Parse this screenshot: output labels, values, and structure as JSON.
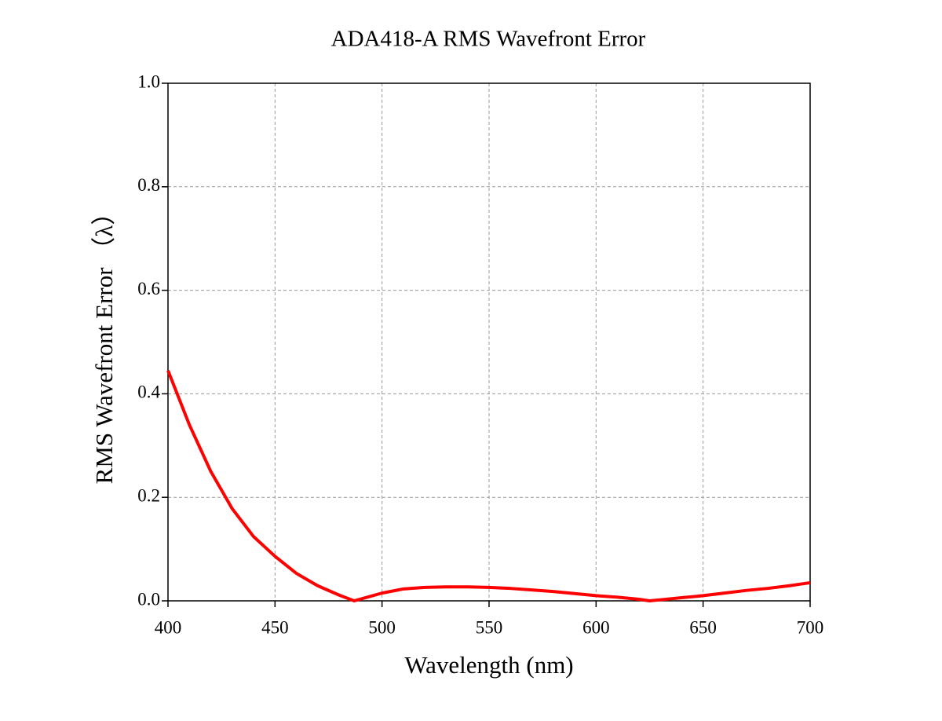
{
  "chart_data": {
    "type": "line",
    "title": "ADA418-A RMS Wavefront Error",
    "x_label": "Wavelength (nm)",
    "y_label": "RMS Wavefront Error （λ）",
    "x": [
      400,
      410,
      420,
      430,
      440,
      450,
      460,
      470,
      480,
      487,
      500,
      510,
      520,
      530,
      540,
      550,
      560,
      570,
      580,
      590,
      600,
      610,
      620,
      625,
      630,
      640,
      650,
      660,
      670,
      680,
      690,
      700
    ],
    "series": [
      {
        "name": "RMS Wavefront Error",
        "color": "#ff0000",
        "values": [
          0.445,
          0.34,
          0.25,
          0.178,
          0.124,
          0.086,
          0.053,
          0.029,
          0.011,
          0.0,
          0.015,
          0.023,
          0.026,
          0.027,
          0.027,
          0.026,
          0.024,
          0.021,
          0.018,
          0.014,
          0.01,
          0.007,
          0.003,
          0.0,
          0.002,
          0.006,
          0.01,
          0.015,
          0.02,
          0.024,
          0.029,
          0.035
        ]
      }
    ],
    "xlim": [
      400,
      700
    ],
    "ylim": [
      0,
      1
    ],
    "xticks": [
      400,
      450,
      500,
      550,
      600,
      650,
      700
    ],
    "yticks": [
      {
        "value": 0,
        "label": "0.0"
      },
      0.2,
      0.4,
      0.6,
      0.8,
      {
        "value": 1,
        "label": "1.0"
      }
    ],
    "grid": true
  }
}
